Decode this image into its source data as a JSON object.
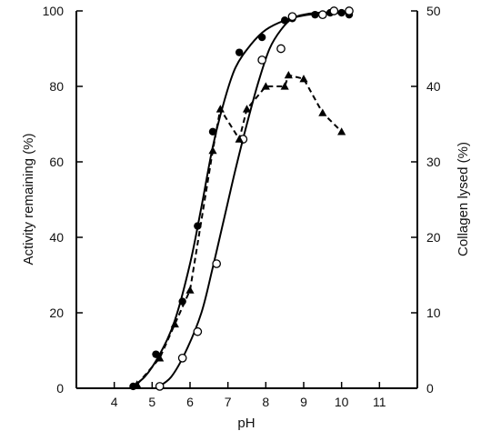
{
  "chart_data": {
    "type": "line",
    "xlabel": "pH",
    "ylabel_left": "Activity remaining (%)",
    "ylabel_right": "Collagen lysed (%)",
    "xlim": [
      3,
      12
    ],
    "ylim_left": [
      0,
      100
    ],
    "ylim_right": [
      0,
      50
    ],
    "x_ticks": [
      4,
      5,
      6,
      7,
      8,
      9,
      10,
      11
    ],
    "y_ticks_left": [
      0,
      20,
      40,
      60,
      80,
      100
    ],
    "y_ticks_right": [
      0,
      10,
      20,
      30,
      40,
      50
    ],
    "grid": false,
    "series": [
      {
        "marker": "filled-circle",
        "line": "solid",
        "axis": "left",
        "color": "#000000",
        "points": [
          [
            4.5,
            0.5
          ],
          [
            5.1,
            9
          ],
          [
            5.8,
            23
          ],
          [
            6.2,
            43
          ],
          [
            6.6,
            68
          ],
          [
            7.3,
            89
          ],
          [
            7.9,
            93
          ],
          [
            8.5,
            97.5
          ],
          [
            8.7,
            98
          ],
          [
            9.3,
            99
          ],
          [
            9.7,
            99.5
          ],
          [
            10.0,
            99.5
          ],
          [
            10.2,
            99
          ]
        ],
        "curve": [
          [
            4.4,
            0
          ],
          [
            4.8,
            3
          ],
          [
            5.2,
            9
          ],
          [
            5.6,
            18
          ],
          [
            6.0,
            33
          ],
          [
            6.3,
            48
          ],
          [
            6.6,
            64
          ],
          [
            6.9,
            76
          ],
          [
            7.2,
            85
          ],
          [
            7.6,
            91
          ],
          [
            8.0,
            95
          ],
          [
            8.5,
            97.5
          ],
          [
            9.0,
            98.8
          ],
          [
            9.5,
            99.3
          ],
          [
            10.2,
            99.5
          ]
        ]
      },
      {
        "marker": "open-circle",
        "line": "solid",
        "axis": "left",
        "color": "#000000",
        "points": [
          [
            5.2,
            0.5
          ],
          [
            5.8,
            8
          ],
          [
            6.2,
            15
          ],
          [
            6.7,
            33
          ],
          [
            7.4,
            66
          ],
          [
            7.9,
            87
          ],
          [
            8.4,
            90
          ],
          [
            8.7,
            98.5
          ],
          [
            9.5,
            99
          ],
          [
            9.8,
            100
          ],
          [
            10.2,
            100
          ]
        ],
        "curve": [
          [
            5.1,
            0
          ],
          [
            5.5,
            3
          ],
          [
            5.9,
            10
          ],
          [
            6.3,
            20
          ],
          [
            6.6,
            32
          ],
          [
            6.9,
            45
          ],
          [
            7.2,
            58
          ],
          [
            7.5,
            70
          ],
          [
            7.8,
            81
          ],
          [
            8.1,
            90
          ],
          [
            8.4,
            95
          ],
          [
            8.7,
            98
          ],
          [
            9.1,
            99.2
          ],
          [
            9.6,
            99.6
          ],
          [
            10.2,
            99.7
          ]
        ]
      },
      {
        "marker": "filled-triangle",
        "line": "dashed",
        "axis": "right",
        "color": "#000000",
        "points": [
          [
            4.6,
            0.5
          ],
          [
            5.2,
            4
          ],
          [
            5.6,
            8.5
          ],
          [
            6.0,
            13
          ],
          [
            6.6,
            31.5
          ],
          [
            6.8,
            37
          ],
          [
            7.3,
            33
          ],
          [
            7.5,
            37
          ],
          [
            8.0,
            40
          ],
          [
            8.5,
            40
          ],
          [
            8.6,
            41.5
          ],
          [
            9.0,
            41
          ],
          [
            9.5,
            36.5
          ],
          [
            10.0,
            34
          ]
        ]
      }
    ]
  }
}
